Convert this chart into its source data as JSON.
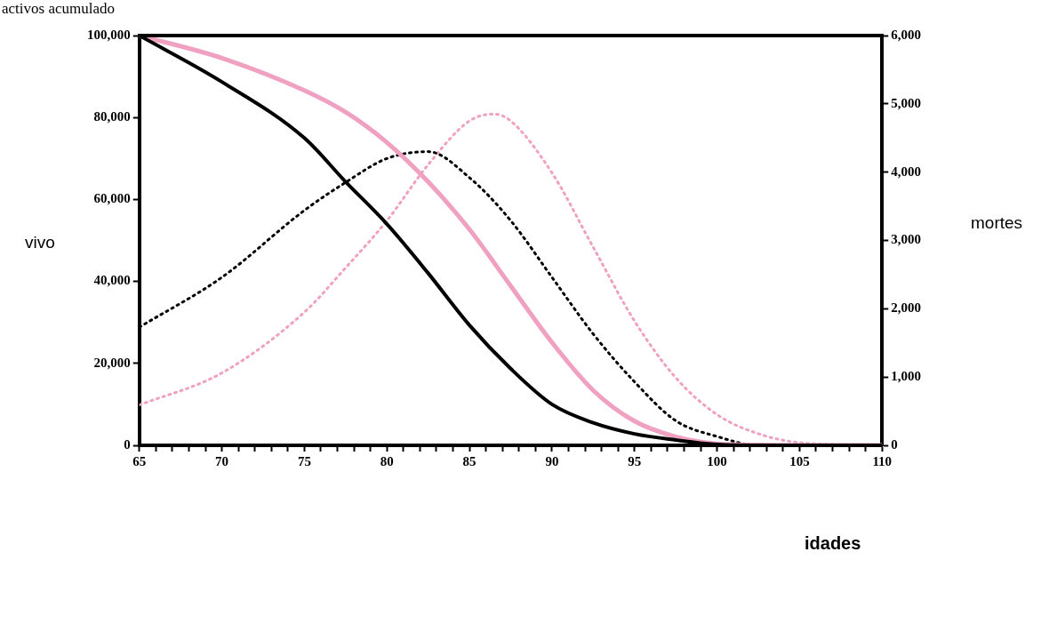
{
  "chart_data": {
    "type": "line",
    "title": "activos acumulado",
    "xlabel": "idades",
    "ylabel": "vivo",
    "y2label": "mortes",
    "x": [
      65,
      70,
      75,
      77.5,
      80,
      82.5,
      85,
      87.5,
      90,
      92.5,
      95,
      97.5,
      100,
      102.5,
      105,
      110
    ],
    "xlim": [
      65,
      110
    ],
    "xticks": [
      65,
      {
        "value": 66,
        "label": null
      },
      {
        "value": 67,
        "label": null
      },
      {
        "value": 68,
        "label": null
      },
      {
        "value": 69,
        "label": null
      },
      70,
      {
        "value": 71,
        "label": null
      },
      {
        "value": 72,
        "label": null
      },
      {
        "value": 73,
        "label": null
      },
      {
        "value": 74,
        "label": null
      },
      75,
      {
        "value": 76,
        "label": null
      },
      {
        "value": 77,
        "label": null
      },
      {
        "value": 78,
        "label": null
      },
      {
        "value": 79,
        "label": null
      },
      80,
      {
        "value": 81,
        "label": null
      },
      {
        "value": 82,
        "label": null
      },
      {
        "value": 83,
        "label": null
      },
      {
        "value": 84,
        "label": null
      },
      85,
      {
        "value": 86,
        "label": null
      },
      {
        "value": 87,
        "label": null
      },
      {
        "value": 88,
        "label": null
      },
      {
        "value": 89,
        "label": null
      },
      90,
      {
        "value": 91,
        "label": null
      },
      {
        "value": 92,
        "label": null
      },
      {
        "value": 93,
        "label": null
      },
      {
        "value": 94,
        "label": null
      },
      95,
      {
        "value": 96,
        "label": null
      },
      {
        "value": 97,
        "label": null
      },
      {
        "value": 98,
        "label": null
      },
      {
        "value": 99,
        "label": null
      },
      100,
      {
        "value": 101,
        "label": null
      },
      {
        "value": 102,
        "label": null
      },
      {
        "value": 103,
        "label": null
      },
      {
        "value": 104,
        "label": null
      },
      105,
      {
        "value": 106,
        "label": null
      },
      {
        "value": 107,
        "label": null
      },
      {
        "value": 108,
        "label": null
      },
      {
        "value": 109,
        "label": null
      },
      110
    ],
    "ylim": [
      0,
      100000
    ],
    "yticks": [
      0,
      {
        "value": 20000,
        "label": "20,000"
      },
      {
        "value": 40000,
        "label": "40,000"
      },
      {
        "value": 60000,
        "label": "60,000"
      },
      {
        "value": 80000,
        "label": "80,000"
      },
      {
        "value": 100000,
        "label": "100,000"
      }
    ],
    "y2lim": [
      0,
      6000
    ],
    "y2ticks": [
      0,
      {
        "value": 1000,
        "label": "1,000"
      },
      {
        "value": 2000,
        "label": "2,000"
      },
      {
        "value": 3000,
        "label": "3,000"
      },
      {
        "value": 4000,
        "label": "4,000"
      },
      {
        "value": 5000,
        "label": "5,000"
      },
      {
        "value": 6000,
        "label": "6,000"
      }
    ],
    "grid": false,
    "legend": false,
    "marker": "none",
    "series": [
      {
        "color": "#000000",
        "line_style": "solid",
        "values": [
          100000,
          88700,
          75000,
          64300,
          54000,
          42000,
          29300,
          18700,
          10000,
          5500,
          2800,
          1300,
          200,
          0,
          0,
          0
        ]
      },
      {
        "color": "#f0a0c0",
        "line_style": "solid",
        "values": [
          100000,
          94500,
          86600,
          81300,
          73900,
          64300,
          52700,
          38900,
          25100,
          13400,
          5900,
          2100,
          400,
          100,
          0,
          0
        ]
      },
      {
        "color": "#000000",
        "line_style": "dotted",
        "axis": "y2",
        "values": [
          1730,
          2460,
          3440,
          3850,
          4200,
          4300,
          3920,
          3290,
          2460,
          1630,
          930,
          360,
          130,
          0,
          0,
          0
        ]
      },
      {
        "color": "#f0a0c0",
        "line_style": "dotted",
        "axis": "y2",
        "x": [
          65,
          70,
          75,
          77.5,
          80,
          82.5,
          85,
          86.5,
          87.5,
          90,
          92.5,
          95,
          97.5,
          100,
          102.5,
          105,
          110
        ],
        "values": [
          590,
          1060,
          1950,
          2600,
          3290,
          4110,
          4750,
          4850,
          4750,
          3990,
          2900,
          1820,
          990,
          450,
          170,
          40,
          0
        ]
      }
    ]
  }
}
